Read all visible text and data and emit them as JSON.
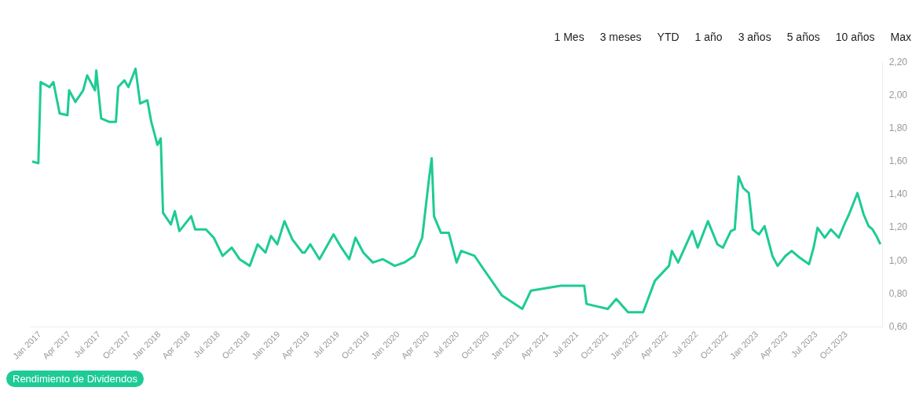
{
  "chart_data": {
    "type": "line",
    "annotations": [
      "1 Mes",
      "3 meses",
      "YTD",
      "1 año",
      "3 años",
      "5 años",
      "10 años",
      "Max"
    ],
    "legend": "bottom left",
    "grid": false,
    "marker": "none",
    "xlim": [
      "2016-12-01",
      "2024-01-20"
    ],
    "xticks": [
      {
        "value": "2017-01-01",
        "label": "Jan 2017"
      },
      {
        "value": "2017-04-01",
        "label": "Apr 2017"
      },
      {
        "value": "2017-07-01",
        "label": "Jul 2017"
      },
      {
        "value": "2017-10-01",
        "label": "Oct 2017"
      },
      {
        "value": "2018-01-01",
        "label": "Jan 2018"
      },
      {
        "value": "2018-04-01",
        "label": "Apr 2018"
      },
      {
        "value": "2018-07-01",
        "label": "Jul 2018"
      },
      {
        "value": "2018-10-01",
        "label": "Oct 2018"
      },
      {
        "value": "2019-01-01",
        "label": "Jan 2019"
      },
      {
        "value": "2019-04-01",
        "label": "Apr 2019"
      },
      {
        "value": "2019-07-01",
        "label": "Jul 2019"
      },
      {
        "value": "2019-10-01",
        "label": "Oct 2019"
      },
      {
        "value": "2020-01-01",
        "label": "Jan 2020"
      },
      {
        "value": "2020-04-01",
        "label": "Apr 2020"
      },
      {
        "value": "2020-07-01",
        "label": "Jul 2020"
      },
      {
        "value": "2020-10-01",
        "label": "Oct 2020"
      },
      {
        "value": "2021-01-01",
        "label": "Jan 2021"
      },
      {
        "value": "2021-04-01",
        "label": "Apr 2021"
      },
      {
        "value": "2021-07-01",
        "label": "Jul 2021"
      },
      {
        "value": "2021-10-01",
        "label": "Oct 2021"
      },
      {
        "value": "2022-01-01",
        "label": "Jan 2022"
      },
      {
        "value": "2022-04-01",
        "label": "Apr 2022"
      },
      {
        "value": "2022-07-01",
        "label": "Jul 2022"
      },
      {
        "value": "2022-10-01",
        "label": "Oct 2022"
      },
      {
        "value": "2023-01-01",
        "label": "Jan 2023"
      },
      {
        "value": "2023-04-01",
        "label": "Apr 2023"
      },
      {
        "value": "2023-07-01",
        "label": "Jul 2023"
      },
      {
        "value": "2023-10-01",
        "label": "Oct 2023"
      }
    ],
    "ylim": [
      0.6,
      2.2
    ],
    "yticks": [
      {
        "value": 0.6,
        "label": "0,60"
      },
      {
        "value": 0.8,
        "label": "0,80"
      },
      {
        "value": 1.0,
        "label": "1,00"
      },
      {
        "value": 1.2,
        "label": "1,20"
      },
      {
        "value": 1.4,
        "label": "1,40"
      },
      {
        "value": 1.6,
        "label": "1,60"
      },
      {
        "value": 1.8,
        "label": "1,80"
      },
      {
        "value": 2.0,
        "label": "2,00"
      },
      {
        "value": 2.2,
        "label": "2,20"
      }
    ],
    "series": [
      {
        "name": "Rendimiento de Dividendos",
        "color": "#1ecb95",
        "x": [
          "2016-12-08",
          "2016-12-27",
          "2017-01-03",
          "2017-01-30",
          "2017-02-11",
          "2017-03-02",
          "2017-03-26",
          "2017-03-31",
          "2017-04-19",
          "2017-05-13",
          "2017-05-25",
          "2017-06-18",
          "2017-06-22",
          "2017-07-07",
          "2017-07-31",
          "2017-08-21",
          "2017-08-28",
          "2017-09-16",
          "2017-09-28",
          "2017-10-20",
          "2017-11-03",
          "2017-11-25",
          "2017-12-07",
          "2017-12-26",
          "2018-01-05",
          "2018-01-12",
          "2018-02-05",
          "2018-02-17",
          "2018-03-03",
          "2018-04-08",
          "2018-04-20",
          "2018-05-23",
          "2018-06-16",
          "2018-07-13",
          "2018-08-10",
          "2018-09-03",
          "2018-10-04",
          "2018-10-28",
          "2018-11-21",
          "2018-12-08",
          "2018-12-27",
          "2019-01-18",
          "2019-02-11",
          "2019-03-14",
          "2019-03-21",
          "2019-04-07",
          "2019-05-05",
          "2019-06-17",
          "2019-07-11",
          "2019-08-04",
          "2019-08-23",
          "2019-09-16",
          "2019-10-15",
          "2019-11-15",
          "2019-12-21",
          "2020-01-19",
          "2020-02-19",
          "2020-03-14",
          "2020-04-04",
          "2020-04-12",
          "2020-04-19",
          "2020-05-10",
          "2020-06-03",
          "2020-06-27",
          "2020-07-11",
          "2020-08-21",
          "2020-09-14",
          "2020-11-13",
          "2021-01-14",
          "2021-02-09",
          "2021-05-11",
          "2021-07-22",
          "2021-07-29",
          "2021-10-02",
          "2021-10-28",
          "2021-12-03",
          "2022-01-18",
          "2022-02-23",
          "2022-04-07",
          "2022-04-16",
          "2022-05-05",
          "2022-06-17",
          "2022-07-04",
          "2022-08-04",
          "2022-09-02",
          "2022-09-19",
          "2022-10-13",
          "2022-10-25",
          "2022-11-06",
          "2022-11-20",
          "2022-12-07",
          "2022-12-19",
          "2023-01-07",
          "2023-01-24",
          "2023-02-17",
          "2023-03-05",
          "2023-03-29",
          "2023-04-17",
          "2023-05-11",
          "2023-06-09",
          "2023-06-23",
          "2023-07-05",
          "2023-07-27",
          "2023-08-15",
          "2023-09-08",
          "2023-09-27",
          "2023-10-09",
          "2023-11-04",
          "2023-11-23",
          "2023-12-08",
          "2023-12-20",
          "2024-01-01",
          "2024-01-13"
        ],
        "values": [
          1.6,
          1.59,
          2.08,
          2.05,
          2.08,
          1.89,
          1.88,
          2.03,
          1.96,
          2.03,
          2.12,
          2.03,
          2.15,
          1.86,
          1.84,
          1.84,
          2.05,
          2.09,
          2.05,
          2.16,
          1.95,
          1.97,
          1.84,
          1.7,
          1.74,
          1.29,
          1.22,
          1.3,
          1.18,
          1.27,
          1.19,
          1.19,
          1.14,
          1.03,
          1.08,
          1.01,
          0.97,
          1.1,
          1.05,
          1.15,
          1.1,
          1.24,
          1.13,
          1.05,
          1.05,
          1.1,
          1.01,
          1.16,
          1.08,
          1.01,
          1.14,
          1.05,
          0.99,
          1.01,
          0.97,
          0.99,
          1.03,
          1.14,
          1.5,
          1.62,
          1.27,
          1.17,
          1.17,
          0.99,
          1.06,
          1.03,
          0.96,
          0.79,
          0.71,
          0.82,
          0.85,
          0.85,
          0.74,
          0.71,
          0.77,
          0.69,
          0.69,
          0.88,
          0.97,
          1.06,
          0.99,
          1.18,
          1.08,
          1.24,
          1.1,
          1.08,
          1.18,
          1.19,
          1.51,
          1.44,
          1.41,
          1.19,
          1.16,
          1.21,
          1.03,
          0.97,
          1.03,
          1.06,
          1.02,
          0.98,
          1.08,
          1.2,
          1.14,
          1.19,
          1.14,
          1.23,
          1.28,
          1.41,
          1.28,
          1.21,
          1.19,
          1.15,
          1.1
        ]
      }
    ]
  }
}
